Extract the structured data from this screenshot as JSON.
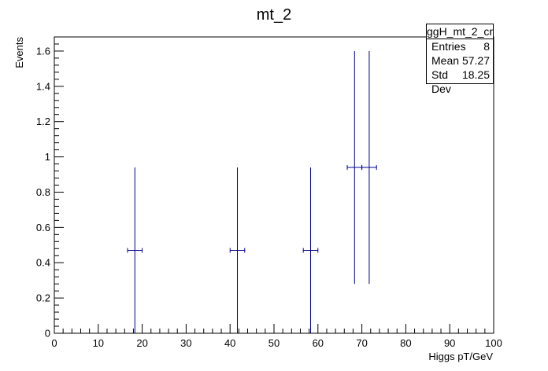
{
  "chart_data": {
    "type": "scatter",
    "title": "mt_2",
    "xlabel": "Higgs pT/GeV",
    "ylabel": "Events",
    "xlim": [
      0,
      100
    ],
    "ylim": [
      0,
      1.68
    ],
    "x_ticks": [
      "0",
      "10",
      "20",
      "30",
      "40",
      "50",
      "60",
      "70",
      "80",
      "90",
      "100"
    ],
    "y_ticks": [
      "0",
      "0.2",
      "0.4",
      "0.6",
      "0.8",
      "1",
      "1.2",
      "1.4",
      "1.6"
    ],
    "bin_width": 3.33,
    "points": [
      {
        "x": 18.33,
        "y": 0.47,
        "ylo": 0.0,
        "yhi": 0.94
      },
      {
        "x": 41.67,
        "y": 0.47,
        "ylo": 0.0,
        "yhi": 0.94
      },
      {
        "x": 58.33,
        "y": 0.47,
        "ylo": 0.0,
        "yhi": 0.94
      },
      {
        "x": 68.33,
        "y": 0.94,
        "ylo": 0.28,
        "yhi": 1.6
      },
      {
        "x": 71.67,
        "y": 0.94,
        "ylo": 0.28,
        "yhi": 1.6
      }
    ],
    "marker_color": "#00008b",
    "stats": {
      "name": "ggH_mt_2_cr",
      "rows": [
        {
          "label": "Entries",
          "value": "8"
        },
        {
          "label": "Mean",
          "value": "57.27"
        },
        {
          "label": "Std Dev",
          "value": "18.25"
        }
      ]
    }
  }
}
